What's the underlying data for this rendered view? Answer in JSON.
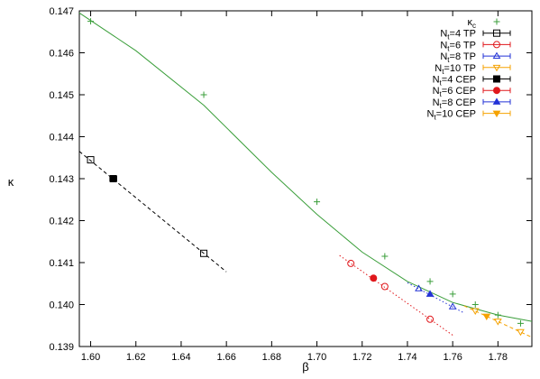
{
  "chart_data": {
    "type": "scatter",
    "title": "",
    "xlabel": "β",
    "ylabel": "κ",
    "xlim": [
      1.595,
      1.795
    ],
    "ylim": [
      0.139,
      0.147
    ],
    "x_ticks": [
      1.6,
      1.62,
      1.64,
      1.66,
      1.68,
      1.7,
      1.72,
      1.74,
      1.76,
      1.78
    ],
    "x_tick_labels": [
      "1.60",
      "1.62",
      "1.64",
      "1.66",
      "1.68",
      "1.70",
      "1.72",
      "1.74",
      "1.76",
      "1.78"
    ],
    "y_ticks": [
      0.139,
      0.14,
      0.141,
      0.142,
      0.143,
      0.144,
      0.145,
      0.146,
      0.147
    ],
    "y_tick_labels": [
      "0.139",
      "0.140",
      "0.141",
      "0.142",
      "0.143",
      "0.144",
      "0.145",
      "0.146",
      "0.147"
    ],
    "grid": false,
    "legend_position": "top-right",
    "series": [
      {
        "name_main": "κ",
        "name_sub": "c",
        "marker": "plus",
        "color": "#3a9e3a",
        "x": [
          1.6,
          1.65,
          1.7,
          1.73,
          1.75,
          1.76,
          1.77,
          1.78,
          1.79
        ],
        "y": [
          0.14675,
          0.145,
          0.14245,
          0.14115,
          0.14055,
          0.14025,
          0.14,
          0.13975,
          0.13955
        ],
        "fit": {
          "x": [
            1.595,
            1.62,
            1.65,
            1.68,
            1.7,
            1.72,
            1.74,
            1.76,
            1.78,
            1.795
          ],
          "y": [
            0.14695,
            0.14605,
            0.14475,
            0.14315,
            0.14215,
            0.14125,
            0.14055,
            0.14005,
            0.13975,
            0.1396
          ],
          "style": "solid"
        }
      },
      {
        "name_main": "N",
        "name_sub": "t",
        "name_rest": "=4 TP",
        "marker": "open-square",
        "color": "#000000",
        "x": [
          1.6,
          1.65
        ],
        "y": [
          0.14345,
          0.14122
        ],
        "fit": {
          "x": [
            1.595,
            1.66
          ],
          "y": [
            0.14365,
            0.14078
          ],
          "style": "dashed"
        }
      },
      {
        "name_main": "N",
        "name_sub": "t",
        "name_rest": "=6 TP",
        "marker": "open-circle",
        "color": "#e0181c",
        "x": [
          1.715,
          1.73,
          1.75
        ],
        "y": [
          0.14098,
          0.14043,
          0.13965
        ],
        "fit": {
          "x": [
            1.71,
            1.76
          ],
          "y": [
            0.14117,
            0.13927
          ],
          "style": "dotted"
        }
      },
      {
        "name_main": "N",
        "name_sub": "t",
        "name_rest": "=8 TP",
        "marker": "open-triangle",
        "color": "#2333d6",
        "x": [
          1.745,
          1.76
        ],
        "y": [
          0.14038,
          0.13995
        ],
        "fit": {
          "x": [
            1.74,
            1.765
          ],
          "y": [
            0.14052,
            0.1398
          ],
          "style": "dotted"
        }
      },
      {
        "name_main": "N",
        "name_sub": "t",
        "name_rest": "=10 TP",
        "marker": "open-inv-triangle",
        "color": "#f5a200",
        "x": [
          1.77,
          1.78,
          1.79
        ],
        "y": [
          0.13985,
          0.1396,
          0.13935
        ],
        "fit": {
          "x": [
            1.765,
            1.795
          ],
          "y": [
            0.13997,
            0.13922
          ],
          "style": "dashed"
        }
      },
      {
        "name_main": "N",
        "name_sub": "t",
        "name_rest": "=4 CEP",
        "marker": "filled-square",
        "color": "#000000",
        "x": [
          1.61
        ],
        "y": [
          0.143
        ],
        "xerr": [
          0.0015
        ]
      },
      {
        "name_main": "N",
        "name_sub": "t",
        "name_rest": "=6 CEP",
        "marker": "filled-circle",
        "color": "#e0181c",
        "x": [
          1.725
        ],
        "y": [
          0.14063
        ]
      },
      {
        "name_main": "N",
        "name_sub": "t",
        "name_rest": "=8 CEP",
        "marker": "filled-triangle",
        "color": "#2333d6",
        "x": [
          1.75
        ],
        "y": [
          0.14025
        ]
      },
      {
        "name_main": "N",
        "name_sub": "t",
        "name_rest": "=10 CEP",
        "marker": "filled-inv-triangle",
        "color": "#f5a200",
        "x": [
          1.775
        ],
        "y": [
          0.13972
        ]
      }
    ]
  }
}
